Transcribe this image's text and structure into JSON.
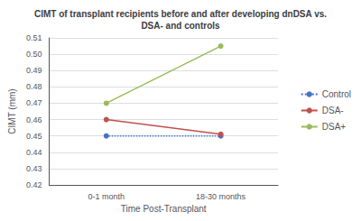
{
  "chart_data": {
    "type": "line",
    "title": "CIMT of transplant recipients before and after developing dnDSA vs.\nDSA- and controls",
    "x_label": "Time Post-Transplant",
    "y_label": "CIMT (mm)",
    "categories": [
      "0-1 month",
      "18-30 months"
    ],
    "series": [
      {
        "name": "Control",
        "color": "#4472C4",
        "line_style": "dotted",
        "marker": "circle",
        "values": [
          0.45,
          0.45
        ]
      },
      {
        "name": "DSA-",
        "color": "#C0504D",
        "line_style": "solid",
        "marker": "circle",
        "values": [
          0.46,
          0.451
        ]
      },
      {
        "name": "DSA+",
        "color": "#9BBB59",
        "line_style": "solid",
        "marker": "circle",
        "values": [
          0.47,
          0.505
        ]
      }
    ],
    "ylim": [
      0.42,
      0.51
    ],
    "yticks": [
      0.42,
      0.43,
      0.44,
      0.45,
      0.46,
      0.47,
      0.48,
      0.49,
      {
        "value": 0.5,
        "label": "0.50"
      },
      0.51
    ],
    "grid": true,
    "legend": "right"
  }
}
